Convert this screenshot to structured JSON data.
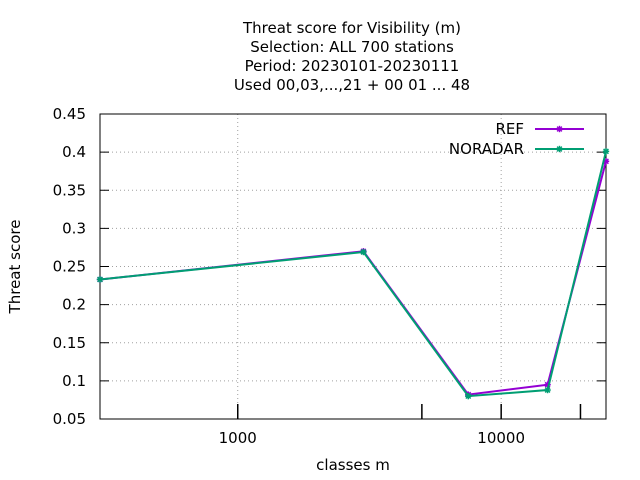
{
  "chart_data": {
    "type": "line",
    "title_lines": [
      "Threat score  for Visibility (m)",
      "Selection: ALL    700 stations",
      "Period: 20230101-20230111",
      "Used  00,03,...,21  + 00 01 ... 48"
    ],
    "xlabel": "classes m",
    "ylabel": "Threat score",
    "x_scale": "log",
    "xlim": [
      300,
      25000
    ],
    "ylim": [
      0.05,
      0.45
    ],
    "x_ticks": [
      {
        "value": 1000,
        "label": "1000"
      },
      {
        "value": 10000,
        "label": "10000"
      }
    ],
    "x_minor_ticks": [
      5000,
      20000
    ],
    "y_ticks": [
      {
        "value": 0.05,
        "label": "0.05"
      },
      {
        "value": 0.1,
        "label": "0.1"
      },
      {
        "value": 0.15,
        "label": "0.15"
      },
      {
        "value": 0.2,
        "label": "0.2"
      },
      {
        "value": 0.25,
        "label": "0.25"
      },
      {
        "value": 0.3,
        "label": "0.3"
      },
      {
        "value": 0.35,
        "label": "0.35"
      },
      {
        "value": 0.4,
        "label": "0.4"
      },
      {
        "value": 0.45,
        "label": "0.45"
      }
    ],
    "grid": true,
    "legend_position": "top-right",
    "series": [
      {
        "name": "REF",
        "color": "#9400d3",
        "points": [
          {
            "x": 300,
            "y": 0.233
          },
          {
            "x": 3000,
            "y": 0.27
          },
          {
            "x": 7500,
            "y": 0.082
          },
          {
            "x": 15000,
            "y": 0.095
          },
          {
            "x": 25000,
            "y": 0.388
          }
        ]
      },
      {
        "name": "NORADAR",
        "color": "#009e73",
        "points": [
          {
            "x": 300,
            "y": 0.233
          },
          {
            "x": 3000,
            "y": 0.269
          },
          {
            "x": 7500,
            "y": 0.08
          },
          {
            "x": 15000,
            "y": 0.088
          },
          {
            "x": 25000,
            "y": 0.401
          }
        ]
      }
    ]
  }
}
